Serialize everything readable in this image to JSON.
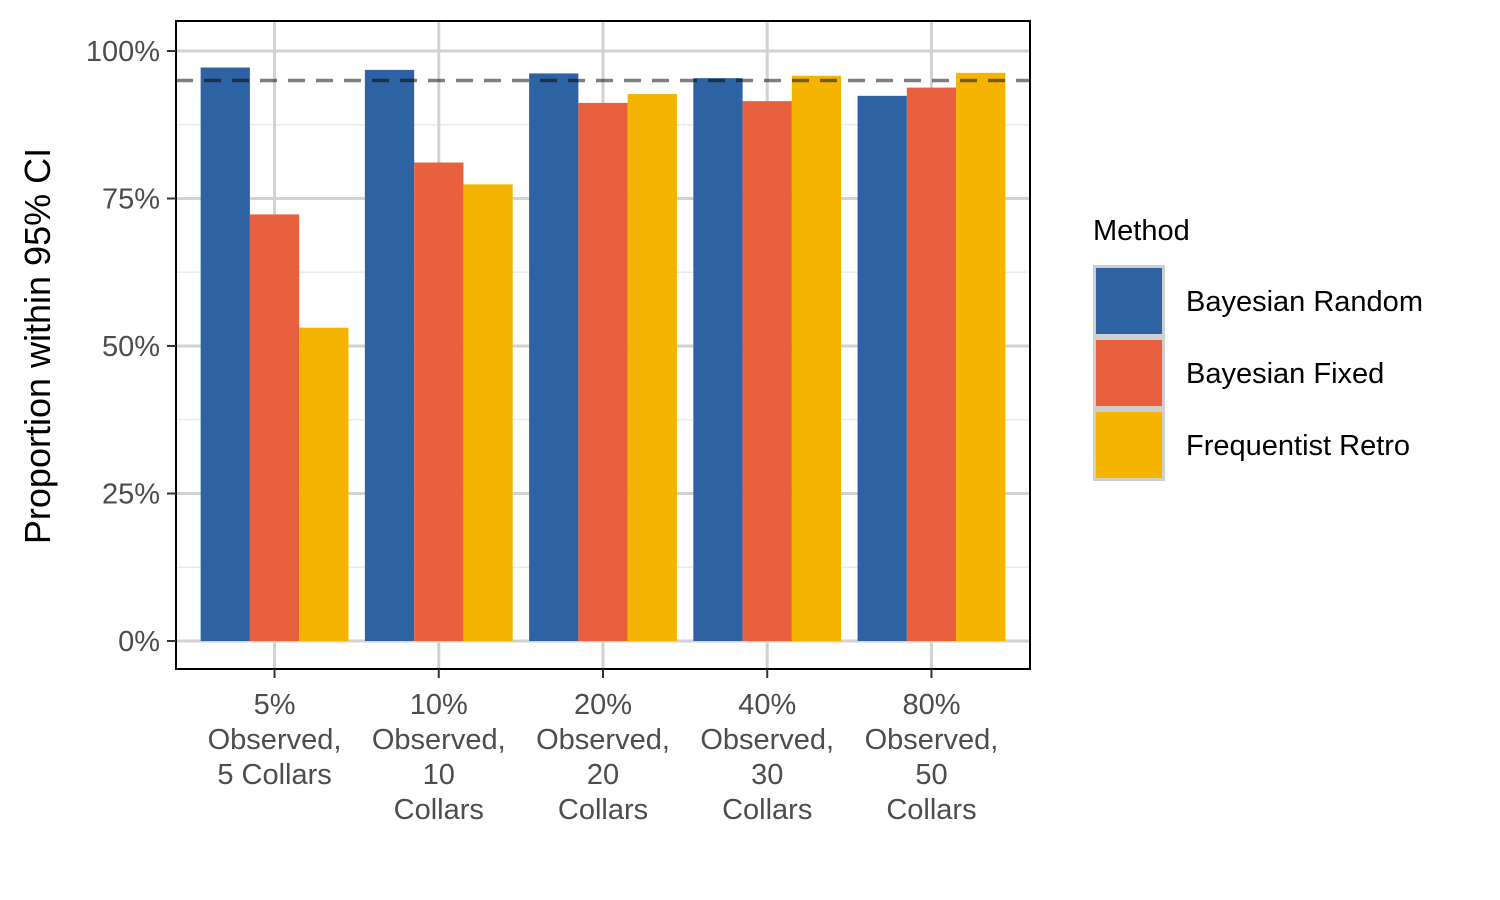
{
  "chart_data": {
    "type": "bar",
    "title": "",
    "xlabel": "",
    "ylabel": "Proportion within 95% CI",
    "ylim": [
      0,
      1.05
    ],
    "y_ticks": [
      0,
      0.25,
      0.5,
      0.75,
      1.0
    ],
    "y_tick_labels": [
      "0%",
      "25%",
      "50%",
      "75%",
      "100%"
    ],
    "categories": [
      [
        "5%",
        "Observed,",
        "5 Collars"
      ],
      [
        "10%",
        "Observed,",
        "10",
        "Collars"
      ],
      [
        "20%",
        "Observed,",
        "20",
        "Collars"
      ],
      [
        "40%",
        "Observed,",
        "30",
        "Collars"
      ],
      [
        "80%",
        "Observed,",
        "50",
        "Collars"
      ]
    ],
    "series": [
      {
        "name": "Bayesian Random",
        "color": "#2e63a3",
        "values": [
          0.972,
          0.968,
          0.962,
          0.954,
          0.924
        ]
      },
      {
        "name": "Bayesian Fixed",
        "color": "#e8603e",
        "values": [
          0.723,
          0.811,
          0.912,
          0.915,
          0.938
        ]
      },
      {
        "name": "Frequentist Retro",
        "color": "#f5b400",
        "values": [
          0.531,
          0.774,
          0.927,
          0.958,
          0.963
        ]
      }
    ],
    "reference_line": {
      "y": 0.95,
      "style": "dashed"
    },
    "legend": {
      "title": "Method",
      "position": "right"
    },
    "grid": true
  }
}
